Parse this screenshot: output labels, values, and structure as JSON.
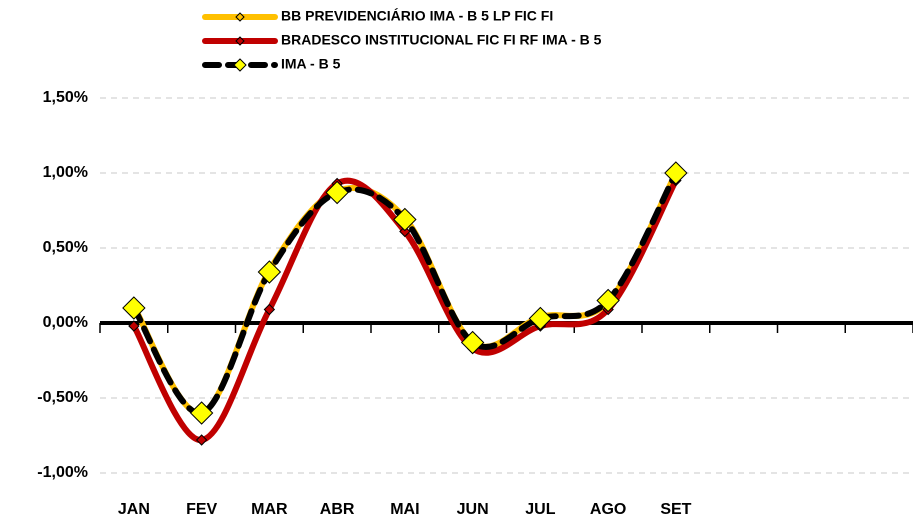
{
  "chart_data": {
    "type": "line",
    "categories": [
      "JAN",
      "FEV",
      "MAR",
      "ABR",
      "MAI",
      "JUN",
      "JUL",
      "AGO",
      "SET",
      null,
      null,
      null
    ],
    "series": [
      {
        "name": "BB PREVIDENCIÁRIO IMA - B 5 LP FIC FI",
        "color": "#FFC000",
        "marker_color": "#FFC000",
        "line_style": "solid",
        "values": [
          0.11,
          -0.6,
          0.35,
          0.88,
          0.7,
          -0.13,
          0.04,
          0.14,
          1.0,
          null,
          null,
          null
        ]
      },
      {
        "name": "BRADESCO INSTITUCIONAL FIC FI RF IMA - B 5",
        "color": "#C00000",
        "marker_color": "#C00000",
        "line_style": "solid",
        "values": [
          -0.02,
          -0.78,
          0.09,
          0.93,
          0.61,
          -0.17,
          -0.02,
          0.09,
          0.95,
          null,
          null,
          null
        ]
      },
      {
        "name": "IMA - B 5",
        "color": "#000000",
        "marker_color": "#FFFF00",
        "line_style": "dotted",
        "values": [
          0.1,
          -0.6,
          0.34,
          0.87,
          0.69,
          -0.13,
          0.03,
          0.15,
          1.0,
          null,
          null,
          null
        ]
      }
    ],
    "ylim": [
      -1.0,
      1.5
    ],
    "yticks": [
      {
        "value": -1.0,
        "label": "-1,00%"
      },
      {
        "value": -0.5,
        "label": "-0,50%"
      },
      {
        "value": 0,
        "label": "0,00%"
      },
      {
        "value": 0.5,
        "label": "0,50%"
      },
      {
        "value": 1.0,
        "label": "1,00%"
      },
      {
        "value": 1.5,
        "label": "1,50%"
      }
    ],
    "grid": true,
    "legend": "top"
  }
}
